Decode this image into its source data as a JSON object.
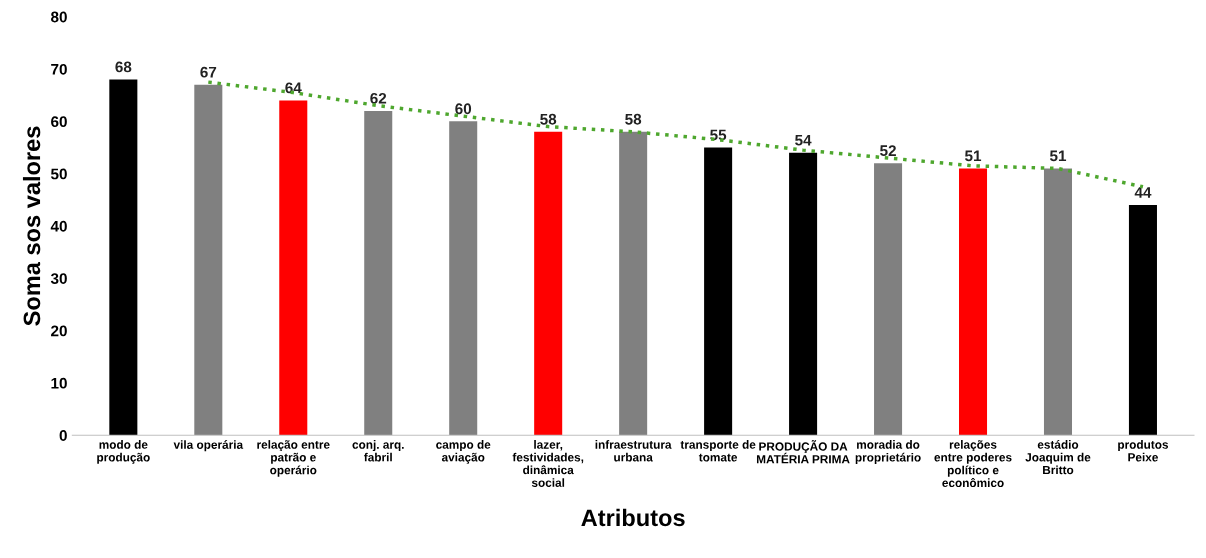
{
  "chart_data": {
    "type": "bar",
    "xlabel": "Atributos",
    "ylabel": "Soma sos valores",
    "categories": [
      "modo de produção",
      "vila operária",
      "relação entre patrão e operário",
      "conj. arq. fabril",
      "campo de aviação",
      "lazer, festividades, dinâmica social",
      "infraestrutura urbana",
      "transporte de tomate",
      "PRODUÇÃO DA MATÉRIA PRIMA",
      "moradia do proprietário",
      "relações entre poderes político e econômico",
      "estádio Joaquim de Britto",
      "produtos Peixe"
    ],
    "series": [
      {
        "data_labels": true,
        "values": [
          68,
          67,
          64,
          62,
          60,
          58,
          58,
          55,
          54,
          52,
          51,
          51,
          44
        ],
        "colors": [
          "#000000",
          "#808080",
          "#ff0000",
          "#808080",
          "#808080",
          "#ff0000",
          "#808080",
          "#000000",
          "#000000",
          "#808080",
          "#ff0000",
          "#808080",
          "#000000"
        ]
      },
      {
        "type": "line",
        "color": "#4ea72e",
        "line_style": "dotted",
        "marker": "none",
        "values": [
          null,
          67.5,
          65.5,
          63,
          61,
          59,
          58,
          56.5,
          54.5,
          53,
          51.5,
          51,
          47.5
        ]
      }
    ],
    "ylim": [
      0,
      80
    ],
    "yticks": [
      0,
      10,
      20,
      30,
      40,
      50,
      60,
      70,
      80
    ],
    "grid": false,
    "legend": false
  }
}
